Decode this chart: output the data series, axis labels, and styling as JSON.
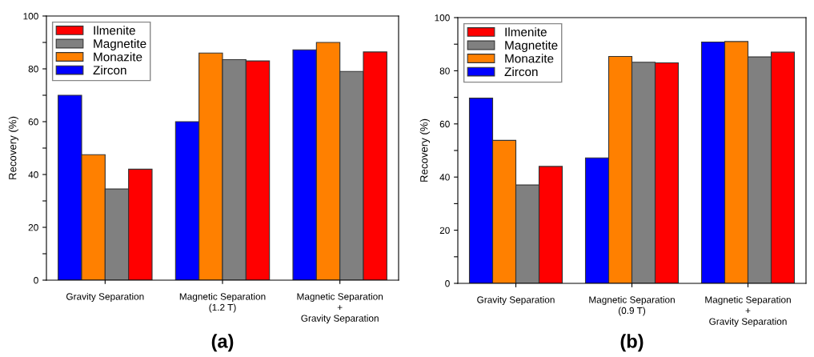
{
  "chart_data": [
    {
      "type": "bar",
      "ylabel": "Recovery (%)",
      "categories": [
        "Gravity Separation",
        "Magnetic Separation\n(1.2 T)",
        "Magnetic Separation\n+\nGravity Separation"
      ],
      "series": [
        {
          "name": "Zircon",
          "color": "#0000ff",
          "values": [
            70,
            60,
            87.2
          ]
        },
        {
          "name": "Monazite",
          "color": "#ff8000",
          "values": [
            47.5,
            86,
            90
          ]
        },
        {
          "name": "Magnetite",
          "color": "#808080",
          "values": [
            34.5,
            83.5,
            79
          ]
        },
        {
          "name": "Ilmenite",
          "color": "#ff0000",
          "values": [
            42,
            83,
            86.4
          ]
        }
      ],
      "ylim": [
        0,
        100
      ],
      "yticks": [
        0,
        {
          "value": 10,
          "label": null
        },
        20,
        {
          "value": 30,
          "label": null
        },
        40,
        {
          "value": 50,
          "label": null
        },
        60,
        {
          "value": 70,
          "label": null
        },
        80,
        {
          "value": 90,
          "label": null
        },
        100
      ],
      "grid": false,
      "legend": "top left",
      "annotations": [
        "(a)"
      ]
    },
    {
      "type": "bar",
      "ylabel": "Recovery (%)",
      "categories": [
        "Gravity Separation",
        "Magnetic Separation\n(0.9 T)",
        "Magnetic Separation\n+\nGravity Separation"
      ],
      "series": [
        {
          "name": "Zircon",
          "color": "#0000ff",
          "values": [
            69.7,
            47.2,
            90.8
          ]
        },
        {
          "name": "Monazite",
          "color": "#ff8000",
          "values": [
            53.8,
            85.4,
            91
          ]
        },
        {
          "name": "Magnetite",
          "color": "#808080",
          "values": [
            37,
            83.2,
            85.2
          ]
        },
        {
          "name": "Ilmenite",
          "color": "#ff0000",
          "values": [
            44,
            83,
            87
          ]
        }
      ],
      "ylim": [
        0,
        100
      ],
      "yticks": [
        0,
        {
          "value": 10,
          "label": null
        },
        20,
        {
          "value": 30,
          "label": null
        },
        40,
        {
          "value": 50,
          "label": null
        },
        60,
        {
          "value": 70,
          "label": null
        },
        80,
        {
          "value": 90,
          "label": null
        },
        100
      ],
      "grid": false,
      "legend": "top left",
      "annotations": [
        "(b)"
      ]
    }
  ]
}
